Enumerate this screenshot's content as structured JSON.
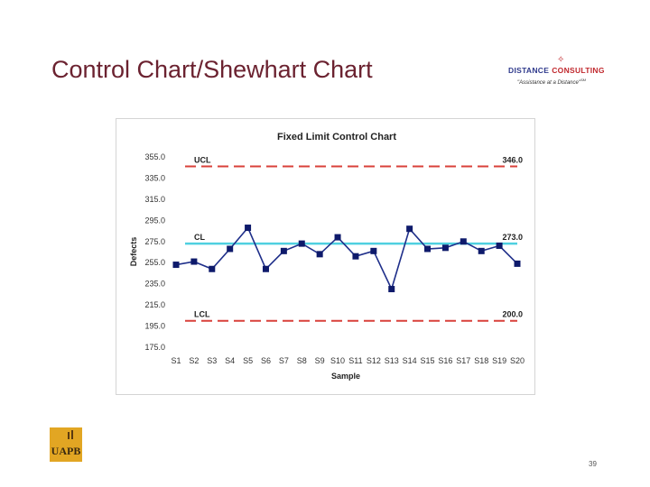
{
  "slide": {
    "title": "Control Chart/Shewhart Chart",
    "page_number": "39"
  },
  "logo": {
    "name_part1": "DISTANCE",
    "name_part2": "CONSULTING",
    "tagline": "\"Assistance at a Distance\"",
    "trademark": "SM"
  },
  "uapb_logo": {
    "text": "UAPB"
  },
  "colors": {
    "title": "#6b2230",
    "limit_line": "#d9403a",
    "center_line": "#4fd0e0",
    "series": "#1f2f8a",
    "marker": "#0e1a6b"
  },
  "chart_data": {
    "type": "line",
    "title": "Fixed Limit Control Chart",
    "xlabel": "Sample",
    "ylabel": "Defects",
    "ylim": [
      175,
      355
    ],
    "yticks": [
      "355.0",
      "335.0",
      "315.0",
      "295.0",
      "275.0",
      "255.0",
      "235.0",
      "215.0",
      "195.0",
      "175.0"
    ],
    "ytick_values": [
      355,
      335,
      315,
      295,
      275,
      255,
      235,
      215,
      195,
      175
    ],
    "categories": [
      "S1",
      "S2",
      "S3",
      "S4",
      "S5",
      "S6",
      "S7",
      "S8",
      "S9",
      "S10",
      "S11",
      "S12",
      "S13",
      "S14",
      "S15",
      "S16",
      "S17",
      "S18",
      "S19",
      "S20"
    ],
    "series": [
      {
        "name": "Defects",
        "values": [
          253,
          256,
          249,
          268,
          288,
          249,
          266,
          273,
          263,
          279,
          261,
          266,
          230,
          287,
          268,
          269,
          275,
          266,
          271,
          254
        ]
      }
    ],
    "limits": [
      {
        "name": "UCL",
        "value": 346.0,
        "label": "UCL",
        "value_label": "346.0",
        "style": "dashed"
      },
      {
        "name": "CL",
        "value": 273.0,
        "label": "CL",
        "value_label": "273.0",
        "style": "solid"
      },
      {
        "name": "LCL",
        "value": 200.0,
        "label": "LCL",
        "value_label": "200.0",
        "style": "dashed"
      }
    ]
  }
}
